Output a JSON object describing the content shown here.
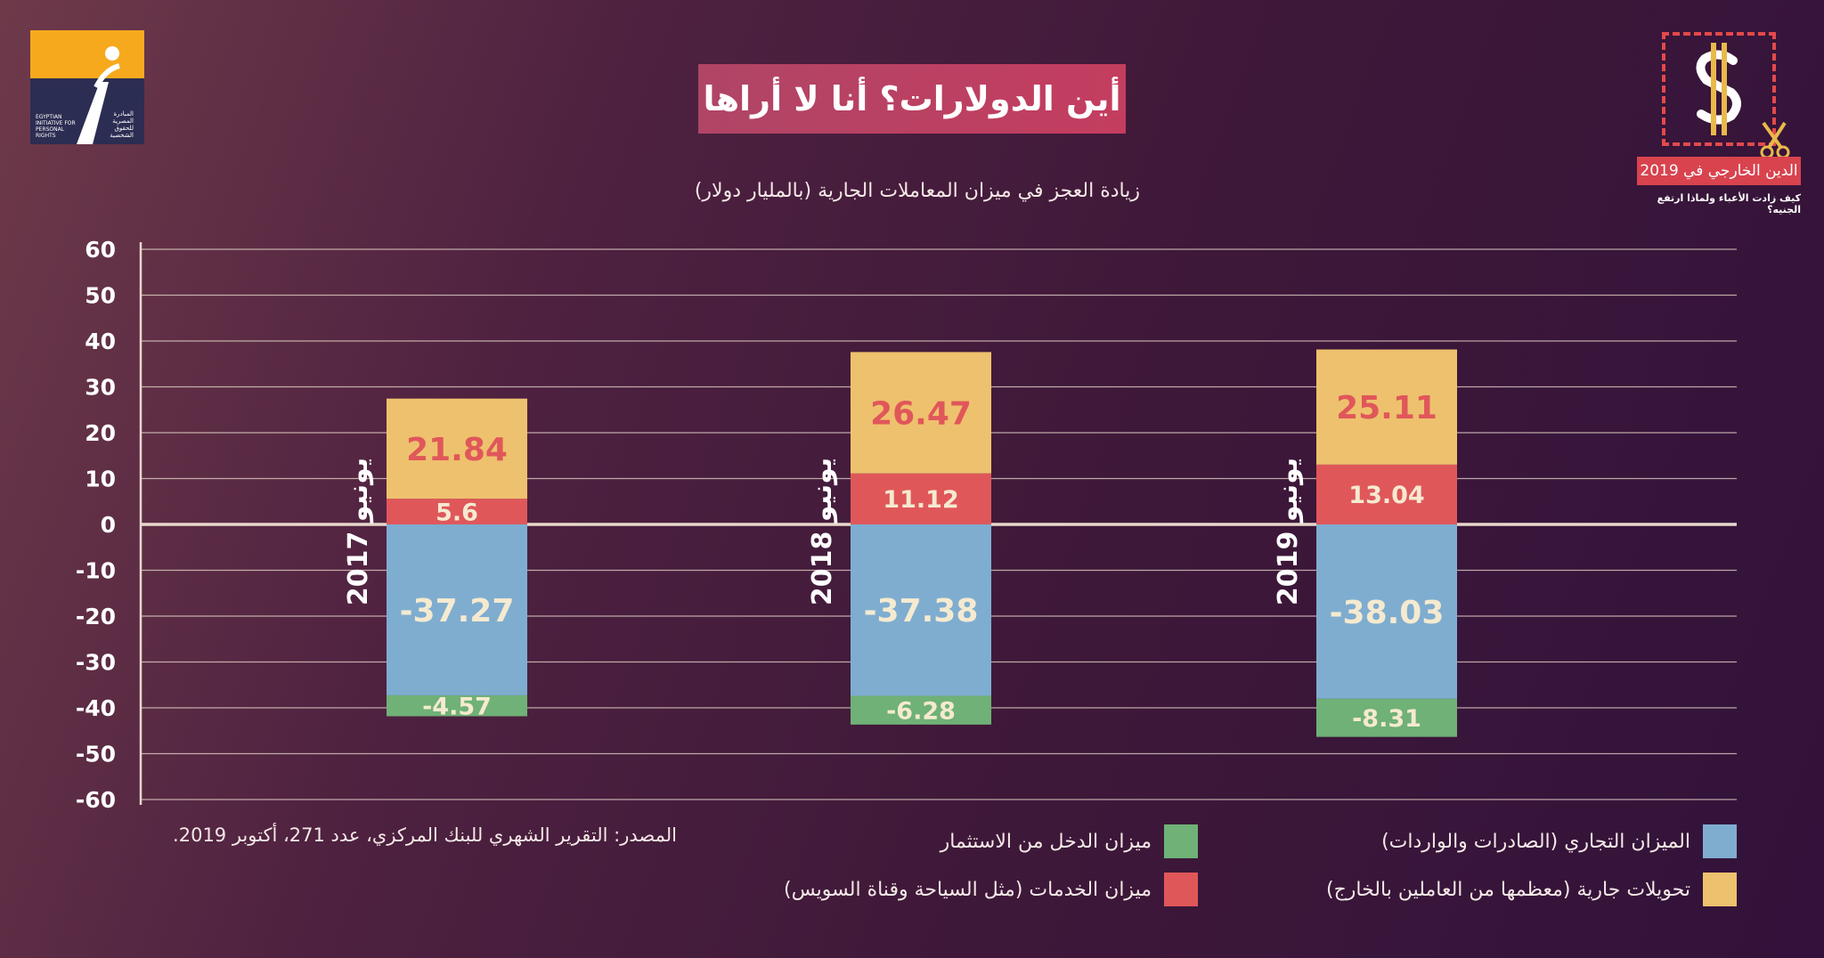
{
  "logo": {
    "name": "eipr-logo",
    "text_en": "EGYPTIAN INITIATIVE FOR PERSONAL RIGHTS",
    "text_ar": "المبادرة المصرية للحقوق الشخصية"
  },
  "title": "أين الدولارات؟ أنا لا أراها",
  "subtitle": "زيادة العجز في ميزان المعاملات الجارية (بالمليار دولار)",
  "brand": {
    "icon": "dollar-scissors-icon",
    "tag": "الدين الخارجي في 2019",
    "sub": "كيف زادت الأعباء ولماذا ارتفع الجنيه؟"
  },
  "source": "المصدر: التقرير الشهري للبنك المركزي، عدد 271، أكتوبر 2019.",
  "colors": {
    "trade": "#7fadd0",
    "income": "#6fb176",
    "services": "#e0575a",
    "transfers": "#eec16e",
    "value_label": "#f5ead0",
    "transfer_label": "#e0575a",
    "grid": "#e8d8cc",
    "axis_text": "#ffffff"
  },
  "chart_data": {
    "type": "bar",
    "stacked": true,
    "categories": [
      "يونيو 2017",
      "يونيو 2018",
      "يونيو 2019"
    ],
    "series": [
      {
        "name": "تحويلات جارية (معظمها من العاملين بالخارج)",
        "key": "transfers",
        "values": [
          21.84,
          26.47,
          25.11
        ]
      },
      {
        "name": "ميزان الخدمات (مثل السياحة وقناة السويس)",
        "key": "services",
        "values": [
          5.6,
          11.12,
          13.04
        ]
      },
      {
        "name": "الميزان التجاري (الصادرات والواردات)",
        "key": "trade",
        "values": [
          -37.27,
          -37.38,
          -38.03
        ]
      },
      {
        "name": "ميزان الدخل من الاستثمار",
        "key": "income",
        "values": [
          -4.57,
          -6.28,
          -8.31
        ]
      }
    ],
    "yticks": [
      60,
      50,
      40,
      30,
      20,
      10,
      0,
      -10,
      -20,
      -30,
      -40,
      -50,
      -60
    ],
    "ylim": [
      -60,
      60
    ],
    "grid": true,
    "legend_position": "bottom"
  }
}
